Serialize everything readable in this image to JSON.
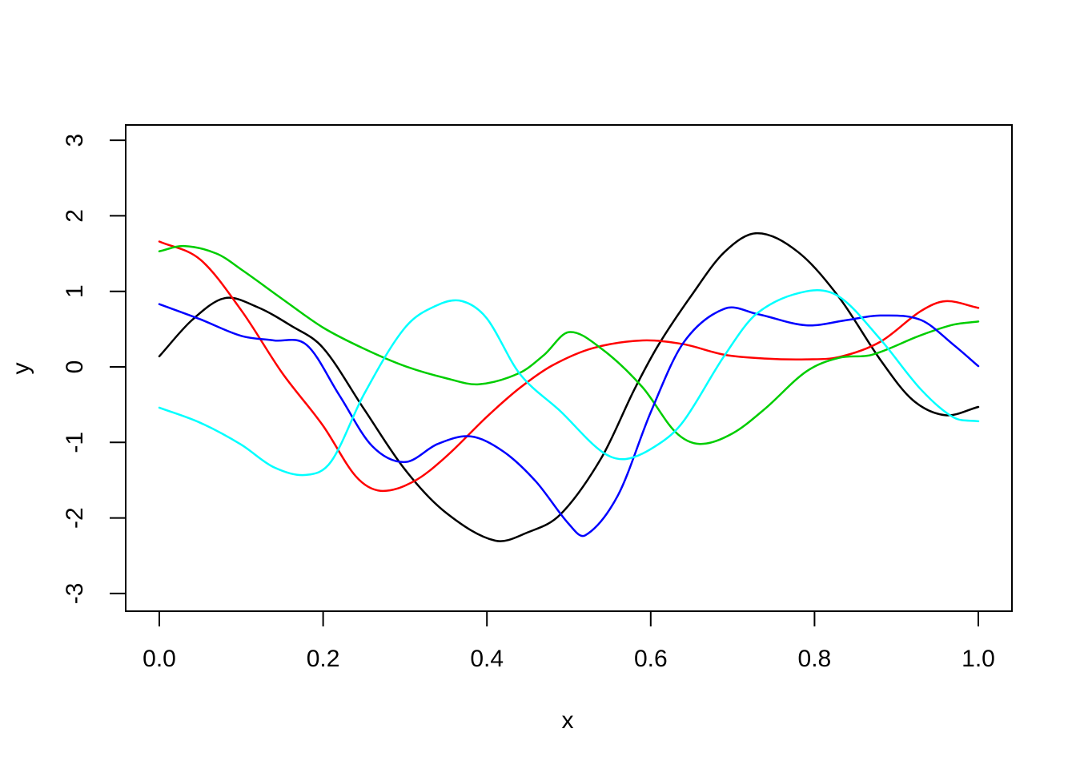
{
  "figure": {
    "background": "#FFFFFF",
    "axis_color": "#000000"
  },
  "chart_data": {
    "type": "line",
    "title": "",
    "xlabel": "x",
    "ylabel": "y",
    "xlim": [
      0,
      1
    ],
    "ylim": [
      -3,
      3
    ],
    "grid": false,
    "legend": null,
    "box": true,
    "x_ticks": [
      0.0,
      0.2,
      0.4,
      0.6,
      0.8,
      1.0
    ],
    "x_tick_labels": [
      "0.0",
      "0.2",
      "0.4",
      "0.6",
      "0.8",
      "1.0"
    ],
    "y_ticks": [
      -3,
      -2,
      -1,
      0,
      1,
      2,
      3
    ],
    "y_tick_labels": [
      "-3",
      "-2",
      "-1",
      "0",
      "1",
      "2",
      "3"
    ],
    "series": [
      {
        "name": "black",
        "color": "#000000",
        "points": [
          [
            0,
            0.14
          ],
          [
            0.04,
            0.62
          ],
          [
            0.08,
            0.91
          ],
          [
            0.12,
            0.79
          ],
          [
            0.16,
            0.55
          ],
          [
            0.2,
            0.25
          ],
          [
            0.25,
            -0.56
          ],
          [
            0.3,
            -1.36
          ],
          [
            0.35,
            -1.93
          ],
          [
            0.41,
            -2.3
          ],
          [
            0.45,
            -2.19
          ],
          [
            0.49,
            -1.95
          ],
          [
            0.54,
            -1.2
          ],
          [
            0.58,
            -0.3
          ],
          [
            0.61,
            0.3
          ],
          [
            0.65,
            0.95
          ],
          [
            0.69,
            1.52
          ],
          [
            0.73,
            1.77
          ],
          [
            0.78,
            1.52
          ],
          [
            0.83,
            0.92
          ],
          [
            0.88,
            0.1
          ],
          [
            0.92,
            -0.44
          ],
          [
            0.96,
            -0.64
          ],
          [
            1.0,
            -0.53
          ]
        ]
      },
      {
        "name": "red",
        "color": "#FF0000",
        "points": [
          [
            0,
            1.66
          ],
          [
            0.05,
            1.42
          ],
          [
            0.1,
            0.75
          ],
          [
            0.15,
            -0.08
          ],
          [
            0.2,
            -0.78
          ],
          [
            0.24,
            -1.45
          ],
          [
            0.27,
            -1.64
          ],
          [
            0.31,
            -1.52
          ],
          [
            0.35,
            -1.19
          ],
          [
            0.4,
            -0.66
          ],
          [
            0.44,
            -0.28
          ],
          [
            0.48,
            0.02
          ],
          [
            0.53,
            0.25
          ],
          [
            0.59,
            0.35
          ],
          [
            0.64,
            0.3
          ],
          [
            0.69,
            0.16
          ],
          [
            0.74,
            0.11
          ],
          [
            0.79,
            0.1
          ],
          [
            0.83,
            0.13
          ],
          [
            0.88,
            0.33
          ],
          [
            0.93,
            0.74
          ],
          [
            0.96,
            0.87
          ],
          [
            1.0,
            0.78
          ]
        ]
      },
      {
        "name": "green",
        "color": "#00CD00",
        "points": [
          [
            0,
            1.53
          ],
          [
            0.03,
            1.6
          ],
          [
            0.07,
            1.5
          ],
          [
            0.1,
            1.29
          ],
          [
            0.15,
            0.9
          ],
          [
            0.2,
            0.52
          ],
          [
            0.25,
            0.24
          ],
          [
            0.3,
            0.01
          ],
          [
            0.35,
            -0.15
          ],
          [
            0.39,
            -0.23
          ],
          [
            0.44,
            -0.08
          ],
          [
            0.47,
            0.16
          ],
          [
            0.5,
            0.46
          ],
          [
            0.54,
            0.24
          ],
          [
            0.59,
            -0.27
          ],
          [
            0.63,
            -0.86
          ],
          [
            0.66,
            -1.02
          ],
          [
            0.7,
            -0.88
          ],
          [
            0.74,
            -0.55
          ],
          [
            0.79,
            -0.06
          ],
          [
            0.83,
            0.12
          ],
          [
            0.87,
            0.16
          ],
          [
            0.93,
            0.42
          ],
          [
            0.97,
            0.56
          ],
          [
            1.0,
            0.6
          ]
        ]
      },
      {
        "name": "blue",
        "color": "#0000FF",
        "points": [
          [
            0,
            0.83
          ],
          [
            0.05,
            0.63
          ],
          [
            0.1,
            0.41
          ],
          [
            0.14,
            0.35
          ],
          [
            0.18,
            0.29
          ],
          [
            0.22,
            -0.38
          ],
          [
            0.26,
            -1.05
          ],
          [
            0.3,
            -1.26
          ],
          [
            0.34,
            -1.02
          ],
          [
            0.38,
            -0.92
          ],
          [
            0.42,
            -1.12
          ],
          [
            0.46,
            -1.52
          ],
          [
            0.5,
            -2.08
          ],
          [
            0.52,
            -2.23
          ],
          [
            0.56,
            -1.7
          ],
          [
            0.6,
            -0.6
          ],
          [
            0.64,
            0.32
          ],
          [
            0.69,
            0.77
          ],
          [
            0.73,
            0.7
          ],
          [
            0.79,
            0.55
          ],
          [
            0.84,
            0.62
          ],
          [
            0.88,
            0.68
          ],
          [
            0.93,
            0.62
          ],
          [
            0.97,
            0.29
          ],
          [
            1.0,
            0.01
          ]
        ]
      },
      {
        "name": "cyan",
        "color": "#00FFFF",
        "points": [
          [
            0,
            -0.54
          ],
          [
            0.05,
            -0.74
          ],
          [
            0.1,
            -1.03
          ],
          [
            0.14,
            -1.33
          ],
          [
            0.18,
            -1.43
          ],
          [
            0.21,
            -1.25
          ],
          [
            0.25,
            -0.36
          ],
          [
            0.3,
            0.52
          ],
          [
            0.34,
            0.82
          ],
          [
            0.37,
            0.87
          ],
          [
            0.4,
            0.64
          ],
          [
            0.44,
            -0.09
          ],
          [
            0.49,
            -0.59
          ],
          [
            0.54,
            -1.12
          ],
          [
            0.57,
            -1.22
          ],
          [
            0.61,
            -1.02
          ],
          [
            0.64,
            -0.72
          ],
          [
            0.69,
            0.15
          ],
          [
            0.73,
            0.71
          ],
          [
            0.79,
            1.0
          ],
          [
            0.83,
            0.93
          ],
          [
            0.88,
            0.37
          ],
          [
            0.93,
            -0.3
          ],
          [
            0.97,
            -0.67
          ],
          [
            1.0,
            -0.72
          ]
        ]
      }
    ]
  }
}
